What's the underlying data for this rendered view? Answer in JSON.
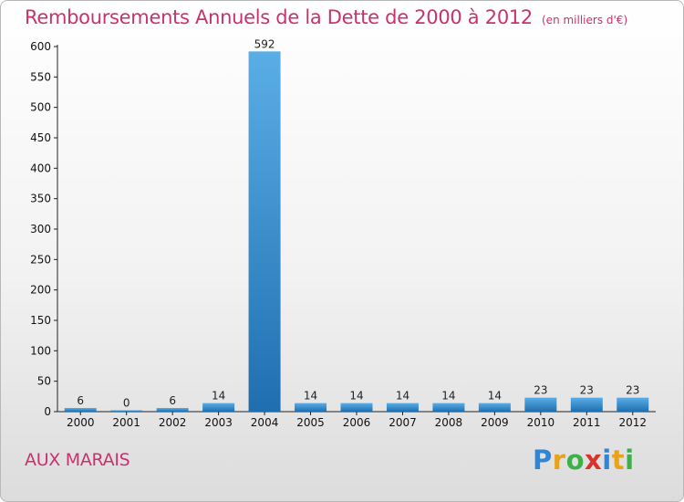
{
  "chart_data": {
    "type": "bar",
    "title": "Remboursements Annuels de la Dette de 2000 à 2012",
    "unit": "(en milliers d'€)",
    "categories": [
      "2000",
      "2001",
      "2002",
      "2003",
      "2004",
      "2005",
      "2006",
      "2007",
      "2008",
      "2009",
      "2010",
      "2011",
      "2012"
    ],
    "values": [
      6,
      0,
      6,
      14,
      592,
      14,
      14,
      14,
      14,
      14,
      23,
      23,
      23
    ],
    "ylim": [
      0,
      600
    ],
    "yticks": [
      0,
      50,
      100,
      150,
      200,
      250,
      300,
      350,
      400,
      450,
      500,
      550,
      600
    ],
    "xlabel": "",
    "ylabel": "",
    "grid": false,
    "bar_color_top": "#5aaee6",
    "bar_color_bottom": "#1f6fb0"
  },
  "place_name": "AUX MARAIS",
  "brand": {
    "parts": [
      "P",
      "r",
      "o",
      "x",
      "i",
      "t",
      "i"
    ]
  },
  "colors": {
    "title": "#c8326e",
    "axis": "#222222"
  }
}
